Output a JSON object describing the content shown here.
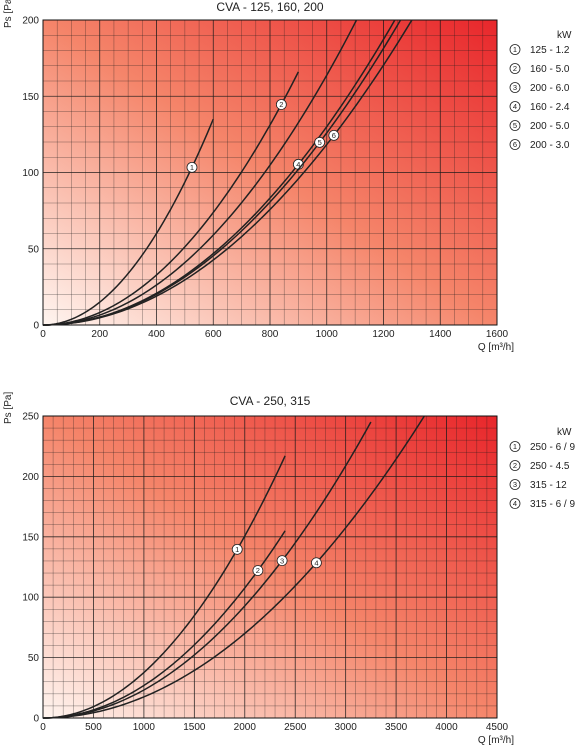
{
  "colors": {
    "gradient_light": "#fff5f0",
    "gradient_mid": "#f5856a",
    "gradient_dark": "#e8262b",
    "grid": "#1a1a1a",
    "curve": "#222222"
  },
  "chart_data": [
    {
      "type": "line",
      "title": "CVA - 125, 160, 200",
      "xlabel": "Q [m³/h]",
      "ylabel": "Ps [Pa]",
      "legend_title": "kW",
      "legend_position": "right",
      "xlim": [
        0,
        1600
      ],
      "ylim": [
        0,
        200
      ],
      "xticks": [
        0,
        200,
        400,
        600,
        800,
        1000,
        1200,
        1400,
        1600
      ],
      "yticks": [
        0,
        50,
        100,
        150,
        200
      ],
      "x_minor": 50,
      "y_minor": 10,
      "grid": true,
      "series": [
        {
          "name": "125 - 1.2",
          "marker": "1",
          "x_end": 600,
          "y_end": 135,
          "marker_x": 525
        },
        {
          "name": "160 - 5.0",
          "marker": "2",
          "x_end": 900,
          "y_end": 166,
          "marker_x": 840
        },
        {
          "name": "200 - 6.0",
          "marker": "3",
          "x_end": 1105,
          "y_end": 200,
          "marker_x": null
        },
        {
          "name": "160 - 2.4",
          "marker": "4",
          "x_end": 1240,
          "y_end": 200,
          "marker_x": 900
        },
        {
          "name": "200 - 5.0",
          "marker": "5",
          "x_end": 1260,
          "y_end": 200,
          "marker_x": 975
        },
        {
          "name": "200 - 3.0",
          "marker": "6",
          "x_end": 1300,
          "y_end": 200,
          "marker_x": 1025
        }
      ]
    },
    {
      "type": "line",
      "title": "CVA - 250, 315",
      "xlabel": "Q [m³/h]",
      "ylabel": "Ps [Pa]",
      "legend_title": "kW",
      "legend_position": "right",
      "xlim": [
        0,
        4500
      ],
      "ylim": [
        0,
        250
      ],
      "xticks": [
        0,
        500,
        1000,
        1500,
        2000,
        2500,
        3000,
        3500,
        4000,
        4500
      ],
      "yticks": [
        0,
        50,
        100,
        150,
        200,
        250
      ],
      "x_minor": 100,
      "y_minor": 10,
      "grid": true,
      "series": [
        {
          "name": "250 - 6 / 9",
          "marker": "1",
          "x_end": 2400,
          "y_end": 217,
          "marker_x": 1925
        },
        {
          "name": "250 - 4.5",
          "marker": "2",
          "x_end": 2400,
          "y_end": 155,
          "marker_x": 2130
        },
        {
          "name": "315 - 12",
          "marker": "3",
          "x_end": 3250,
          "y_end": 245,
          "marker_x": 2370
        },
        {
          "name": "315 - 6 / 9",
          "marker": "4",
          "x_end": 3780,
          "y_end": 250,
          "marker_x": 2710
        }
      ]
    }
  ]
}
